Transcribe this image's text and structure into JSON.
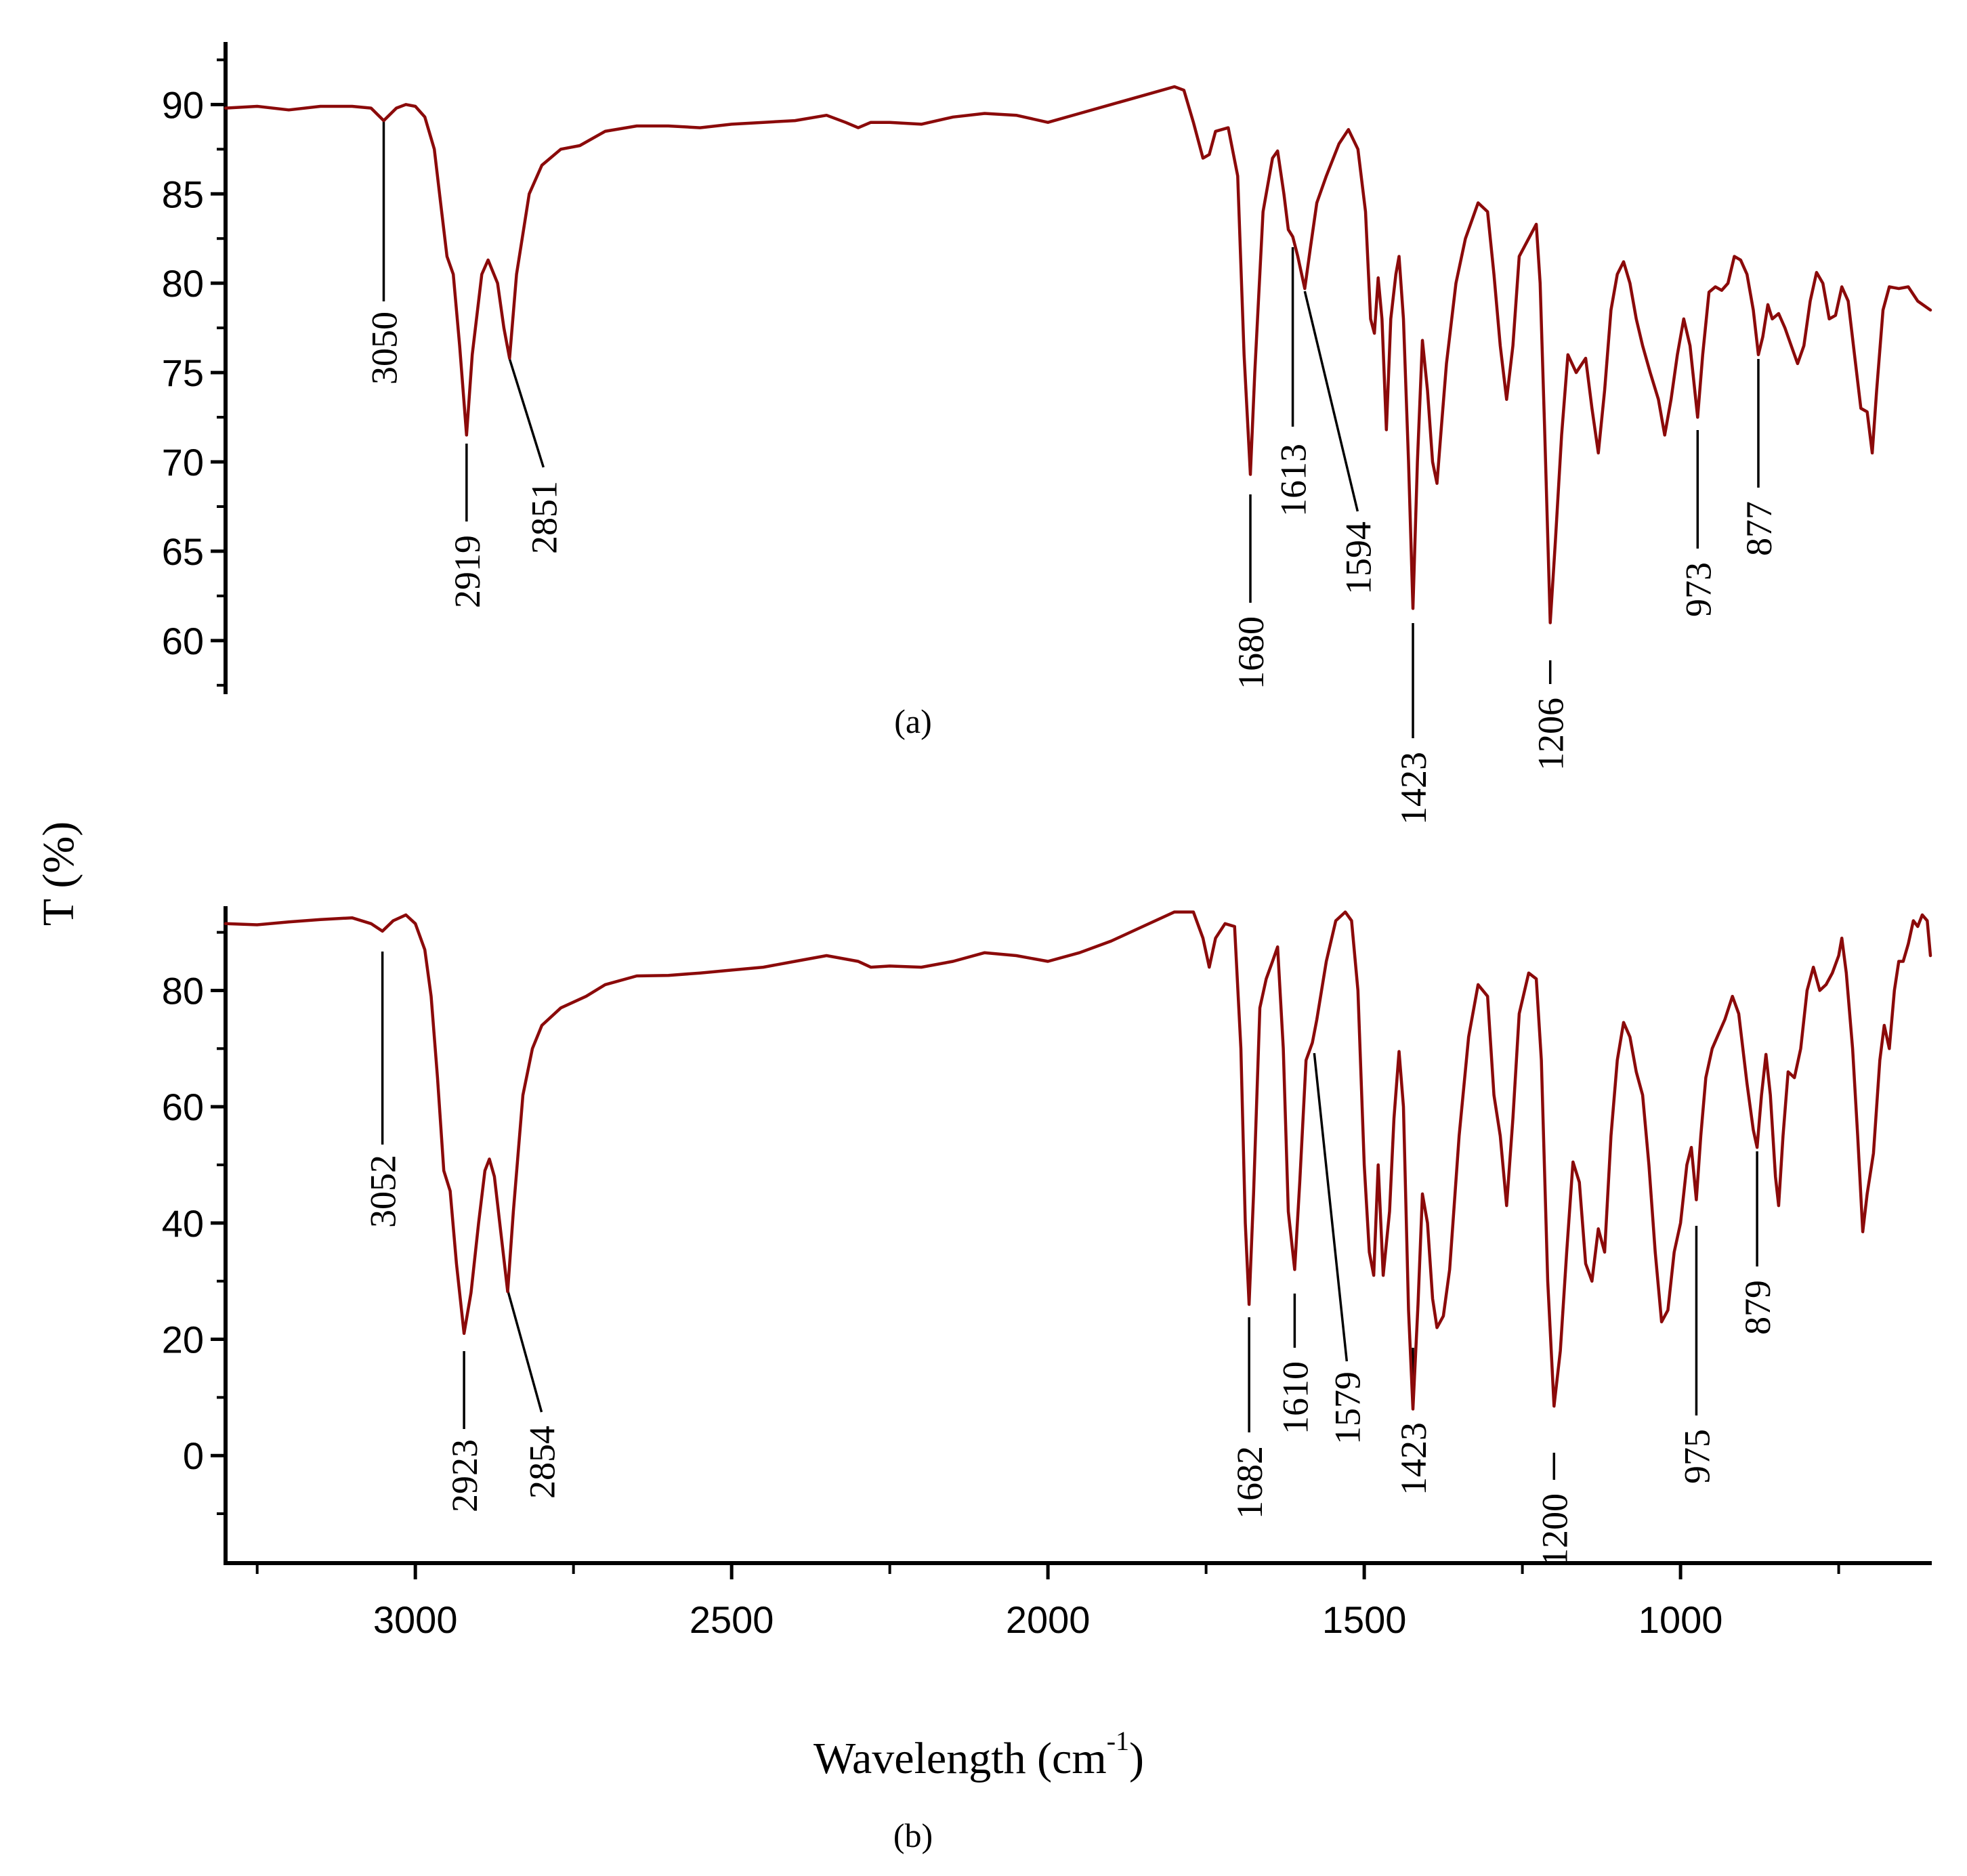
{
  "chart_data": [
    {
      "type": "line",
      "panel_caption": "(a)",
      "x_range": [
        3300,
        605
      ],
      "ylim": [
        57,
        93.5
      ],
      "yticks": [
        60,
        65,
        70,
        75,
        80,
        85,
        90
      ],
      "baseline": 88.5,
      "color": "#8b0a0a",
      "anchors": [
        [
          3300,
          89.8
        ],
        [
          3250,
          89.9
        ],
        [
          3200,
          89.7
        ],
        [
          3150,
          89.9
        ],
        [
          3100,
          89.9
        ],
        [
          3070,
          89.8
        ],
        [
          3050,
          89.1
        ],
        [
          3030,
          89.8
        ],
        [
          3015,
          90.0
        ],
        [
          3000,
          89.9
        ],
        [
          2985,
          89.3
        ],
        [
          2970,
          87.5
        ],
        [
          2960,
          84.5
        ],
        [
          2950,
          81.5
        ],
        [
          2940,
          80.5
        ],
        [
          2930,
          76.5
        ],
        [
          2919,
          71.5
        ],
        [
          2910,
          76.0
        ],
        [
          2895,
          80.5
        ],
        [
          2885,
          81.3
        ],
        [
          2870,
          80.0
        ],
        [
          2860,
          77.5
        ],
        [
          2851,
          75.8
        ],
        [
          2840,
          80.5
        ],
        [
          2820,
          85.0
        ],
        [
          2800,
          86.6
        ],
        [
          2770,
          87.5
        ],
        [
          2740,
          87.7
        ],
        [
          2700,
          88.5
        ],
        [
          2650,
          88.8
        ],
        [
          2600,
          88.8
        ],
        [
          2550,
          88.7
        ],
        [
          2500,
          88.9
        ],
        [
          2450,
          89.0
        ],
        [
          2400,
          89.1
        ],
        [
          2350,
          89.4
        ],
        [
          2320,
          89.0
        ],
        [
          2300,
          88.7
        ],
        [
          2280,
          89.0
        ],
        [
          2250,
          89.0
        ],
        [
          2200,
          88.9
        ],
        [
          2150,
          89.3
        ],
        [
          2100,
          89.5
        ],
        [
          2050,
          89.4
        ],
        [
          2000,
          89.0
        ],
        [
          1950,
          89.5
        ],
        [
          1900,
          90.0
        ],
        [
          1850,
          90.5
        ],
        [
          1800,
          91.0
        ],
        [
          1785,
          90.8
        ],
        [
          1770,
          89.0
        ],
        [
          1755,
          87.0
        ],
        [
          1745,
          87.2
        ],
        [
          1735,
          88.5
        ],
        [
          1715,
          88.7
        ],
        [
          1700,
          86.0
        ],
        [
          1690,
          76.0
        ],
        [
          1680,
          69.3
        ],
        [
          1673,
          75.0
        ],
        [
          1660,
          84.0
        ],
        [
          1645,
          87.0
        ],
        [
          1637,
          87.4
        ],
        [
          1627,
          85.0
        ],
        [
          1620,
          83.0
        ],
        [
          1613,
          82.6
        ],
        [
          1605,
          81.5
        ],
        [
          1594,
          79.7
        ],
        [
          1585,
          82.0
        ],
        [
          1575,
          84.5
        ],
        [
          1560,
          86.0
        ],
        [
          1540,
          87.8
        ],
        [
          1525,
          88.6
        ],
        [
          1510,
          87.5
        ],
        [
          1498,
          84.0
        ],
        [
          1490,
          78.0
        ],
        [
          1484,
          77.2
        ],
        [
          1478,
          80.3
        ],
        [
          1472,
          78.0
        ],
        [
          1465,
          71.8
        ],
        [
          1458,
          78.0
        ],
        [
          1450,
          80.5
        ],
        [
          1445,
          81.5
        ],
        [
          1438,
          78.0
        ],
        [
          1430,
          70.0
        ],
        [
          1423,
          61.8
        ],
        [
          1416,
          70.0
        ],
        [
          1408,
          76.8
        ],
        [
          1400,
          74.0
        ],
        [
          1392,
          70.0
        ],
        [
          1385,
          68.8
        ],
        [
          1378,
          72.0
        ],
        [
          1370,
          75.5
        ],
        [
          1355,
          80.0
        ],
        [
          1340,
          82.5
        ],
        [
          1320,
          84.5
        ],
        [
          1305,
          84.0
        ],
        [
          1295,
          80.5
        ],
        [
          1285,
          76.5
        ],
        [
          1275,
          73.5
        ],
        [
          1265,
          76.5
        ],
        [
          1255,
          81.5
        ],
        [
          1240,
          82.5
        ],
        [
          1228,
          83.3
        ],
        [
          1222,
          80.0
        ],
        [
          1215,
          72.0
        ],
        [
          1206,
          61.0
        ],
        [
          1198,
          65.5
        ],
        [
          1188,
          71.5
        ],
        [
          1178,
          76.0
        ],
        [
          1165,
          75.0
        ],
        [
          1150,
          75.8
        ],
        [
          1140,
          73.0
        ],
        [
          1130,
          70.5
        ],
        [
          1120,
          74.0
        ],
        [
          1110,
          78.5
        ],
        [
          1100,
          80.5
        ],
        [
          1090,
          81.2
        ],
        [
          1080,
          80.0
        ],
        [
          1070,
          78.0
        ],
        [
          1060,
          76.5
        ],
        [
          1048,
          75.0
        ],
        [
          1035,
          73.5
        ],
        [
          1025,
          71.5
        ],
        [
          1015,
          73.5
        ],
        [
          1005,
          76.0
        ],
        [
          995,
          78.0
        ],
        [
          985,
          76.5
        ],
        [
          973,
          72.5
        ],
        [
          965,
          76.0
        ],
        [
          955,
          79.5
        ],
        [
          945,
          79.8
        ],
        [
          935,
          79.6
        ],
        [
          925,
          80.0
        ],
        [
          915,
          81.5
        ],
        [
          905,
          81.3
        ],
        [
          895,
          80.5
        ],
        [
          885,
          78.5
        ],
        [
          877,
          76.0
        ],
        [
          870,
          77.0
        ],
        [
          862,
          78.8
        ],
        [
          855,
          78.0
        ],
        [
          845,
          78.3
        ],
        [
          835,
          77.5
        ],
        [
          825,
          76.5
        ],
        [
          815,
          75.5
        ],
        [
          805,
          76.5
        ],
        [
          795,
          79.0
        ],
        [
          785,
          80.6
        ],
        [
          775,
          80.0
        ],
        [
          765,
          78.0
        ],
        [
          755,
          78.2
        ],
        [
          745,
          79.8
        ],
        [
          735,
          79.0
        ],
        [
          725,
          76.0
        ],
        [
          715,
          73.0
        ],
        [
          705,
          72.8
        ],
        [
          697,
          70.5
        ],
        [
          690,
          74.0
        ],
        [
          680,
          78.5
        ],
        [
          670,
          79.8
        ],
        [
          655,
          79.7
        ],
        [
          640,
          79.8
        ],
        [
          625,
          79.0
        ],
        [
          605,
          78.5
        ]
      ],
      "peaks": [
        "3050",
        "2919",
        "2851",
        "1680",
        "1613",
        "1594",
        "1423",
        "1206",
        "973",
        "877"
      ]
    },
    {
      "type": "line",
      "panel_caption": "(b)",
      "x_range": [
        3300,
        605
      ],
      "ylim": [
        -18.5,
        94.5
      ],
      "yticks": [
        0,
        20,
        40,
        60,
        80
      ],
      "color": "#8b0a0a",
      "anchors": [
        [
          3300,
          91.5
        ],
        [
          3250,
          91.3
        ],
        [
          3200,
          91.8
        ],
        [
          3150,
          92.2
        ],
        [
          3100,
          92.5
        ],
        [
          3070,
          91.5
        ],
        [
          3052,
          90.2
        ],
        [
          3035,
          92.0
        ],
        [
          3015,
          93.0
        ],
        [
          3000,
          91.5
        ],
        [
          2985,
          87.0
        ],
        [
          2975,
          79.0
        ],
        [
          2965,
          65.0
        ],
        [
          2955,
          49.0
        ],
        [
          2945,
          45.5
        ],
        [
          2935,
          33.0
        ],
        [
          2923,
          21.0
        ],
        [
          2912,
          28.0
        ],
        [
          2900,
          40.0
        ],
        [
          2890,
          49.0
        ],
        [
          2883,
          51.0
        ],
        [
          2875,
          48.0
        ],
        [
          2865,
          38.5
        ],
        [
          2854,
          28.2
        ],
        [
          2845,
          42.0
        ],
        [
          2830,
          62.0
        ],
        [
          2815,
          70.0
        ],
        [
          2800,
          74.0
        ],
        [
          2770,
          77.0
        ],
        [
          2730,
          79.0
        ],
        [
          2700,
          81.0
        ],
        [
          2650,
          82.5
        ],
        [
          2600,
          82.6
        ],
        [
          2550,
          83.0
        ],
        [
          2500,
          83.5
        ],
        [
          2450,
          84.0
        ],
        [
          2400,
          85.0
        ],
        [
          2350,
          86.0
        ],
        [
          2300,
          85.0
        ],
        [
          2280,
          84.0
        ],
        [
          2250,
          84.2
        ],
        [
          2200,
          84.0
        ],
        [
          2150,
          85.0
        ],
        [
          2100,
          86.5
        ],
        [
          2050,
          86.0
        ],
        [
          2000,
          85.0
        ],
        [
          1950,
          86.5
        ],
        [
          1900,
          88.5
        ],
        [
          1850,
          91.0
        ],
        [
          1800,
          93.5
        ],
        [
          1770,
          93.5
        ],
        [
          1755,
          89.0
        ],
        [
          1745,
          84.0
        ],
        [
          1735,
          89.0
        ],
        [
          1720,
          91.5
        ],
        [
          1705,
          91.0
        ],
        [
          1695,
          70.0
        ],
        [
          1688,
          40.0
        ],
        [
          1682,
          26.0
        ],
        [
          1675,
          45.0
        ],
        [
          1665,
          77.0
        ],
        [
          1655,
          82.0
        ],
        [
          1645,
          85.0
        ],
        [
          1637,
          87.5
        ],
        [
          1628,
          70.0
        ],
        [
          1620,
          42.0
        ],
        [
          1610,
          32.0
        ],
        [
          1602,
          47.0
        ],
        [
          1592,
          68.0
        ],
        [
          1582,
          71.0
        ],
        [
          1575,
          75.0
        ],
        [
          1560,
          85.0
        ],
        [
          1545,
          92.0
        ],
        [
          1530,
          93.5
        ],
        [
          1520,
          92.0
        ],
        [
          1510,
          80.0
        ],
        [
          1500,
          50.0
        ],
        [
          1492,
          35.0
        ],
        [
          1485,
          31.0
        ],
        [
          1478,
          50.0
        ],
        [
          1470,
          31.0
        ],
        [
          1460,
          42.0
        ],
        [
          1453,
          58.0
        ],
        [
          1445,
          69.5
        ],
        [
          1438,
          60.0
        ],
        [
          1430,
          25.0
        ],
        [
          1423,
          8.0
        ],
        [
          1415,
          26.0
        ],
        [
          1408,
          45.0
        ],
        [
          1400,
          40.0
        ],
        [
          1392,
          27.0
        ],
        [
          1385,
          22.0
        ],
        [
          1375,
          24.0
        ],
        [
          1365,
          32.0
        ],
        [
          1350,
          55.0
        ],
        [
          1335,
          72.0
        ],
        [
          1320,
          81.0
        ],
        [
          1305,
          79.0
        ],
        [
          1295,
          62.0
        ],
        [
          1285,
          55.0
        ],
        [
          1275,
          43.0
        ],
        [
          1265,
          58.0
        ],
        [
          1255,
          76.0
        ],
        [
          1240,
          83.0
        ],
        [
          1228,
          82.0
        ],
        [
          1220,
          68.0
        ],
        [
          1210,
          30.0
        ],
        [
          1200,
          8.5
        ],
        [
          1190,
          18.0
        ],
        [
          1180,
          35.0
        ],
        [
          1170,
          50.5
        ],
        [
          1160,
          47.0
        ],
        [
          1150,
          33.0
        ],
        [
          1140,
          30.0
        ],
        [
          1130,
          39.0
        ],
        [
          1120,
          35.0
        ],
        [
          1110,
          55.0
        ],
        [
          1100,
          68.0
        ],
        [
          1090,
          74.5
        ],
        [
          1080,
          72.0
        ],
        [
          1070,
          66.0
        ],
        [
          1060,
          62.0
        ],
        [
          1050,
          50.0
        ],
        [
          1040,
          35.0
        ],
        [
          1030,
          23.0
        ],
        [
          1020,
          25.0
        ],
        [
          1010,
          35.0
        ],
        [
          1000,
          40.0
        ],
        [
          990,
          50.0
        ],
        [
          983,
          53.0
        ],
        [
          975,
          44.0
        ],
        [
          968,
          55.0
        ],
        [
          960,
          65.0
        ],
        [
          950,
          70.0
        ],
        [
          940,
          72.5
        ],
        [
          930,
          75.0
        ],
        [
          918,
          79.0
        ],
        [
          908,
          76.0
        ],
        [
          895,
          64.0
        ],
        [
          885,
          56.0
        ],
        [
          879,
          53.0
        ],
        [
          872,
          62.0
        ],
        [
          865,
          69.0
        ],
        [
          858,
          62.0
        ],
        [
          850,
          48.0
        ],
        [
          845,
          43.0
        ],
        [
          838,
          55.0
        ],
        [
          830,
          66.0
        ],
        [
          820,
          65.0
        ],
        [
          810,
          70.0
        ],
        [
          800,
          80.0
        ],
        [
          790,
          84.0
        ],
        [
          780,
          80.0
        ],
        [
          770,
          81.0
        ],
        [
          760,
          83.0
        ],
        [
          750,
          86.0
        ],
        [
          745,
          89.0
        ],
        [
          738,
          83.0
        ],
        [
          728,
          70.0
        ],
        [
          720,
          55.0
        ],
        [
          712,
          38.5
        ],
        [
          705,
          45.0
        ],
        [
          695,
          52.0
        ],
        [
          685,
          68.0
        ],
        [
          678,
          74.0
        ],
        [
          670,
          70.0
        ],
        [
          662,
          80.0
        ],
        [
          655,
          85.0
        ],
        [
          648,
          85.0
        ],
        [
          640,
          88.0
        ],
        [
          632,
          92.0
        ],
        [
          625,
          91.0
        ],
        [
          618,
          93.0
        ],
        [
          610,
          92.0
        ],
        [
          605,
          86.0
        ]
      ],
      "peaks": [
        "3052",
        "2923",
        "2854",
        "1682",
        "1610",
        "1579",
        "1423",
        "1200",
        "975",
        "879"
      ]
    }
  ],
  "shared": {
    "ylabel": "T (%)",
    "xlabel": "Wavelength (cm",
    "xlabel_sup": "-1",
    "xlabel_close": ")",
    "xticks": [
      1000,
      1500,
      2000,
      2500,
      3000
    ],
    "xtick_labels": [
      "1000",
      "1500",
      "2000",
      "2500",
      "3000"
    ]
  }
}
